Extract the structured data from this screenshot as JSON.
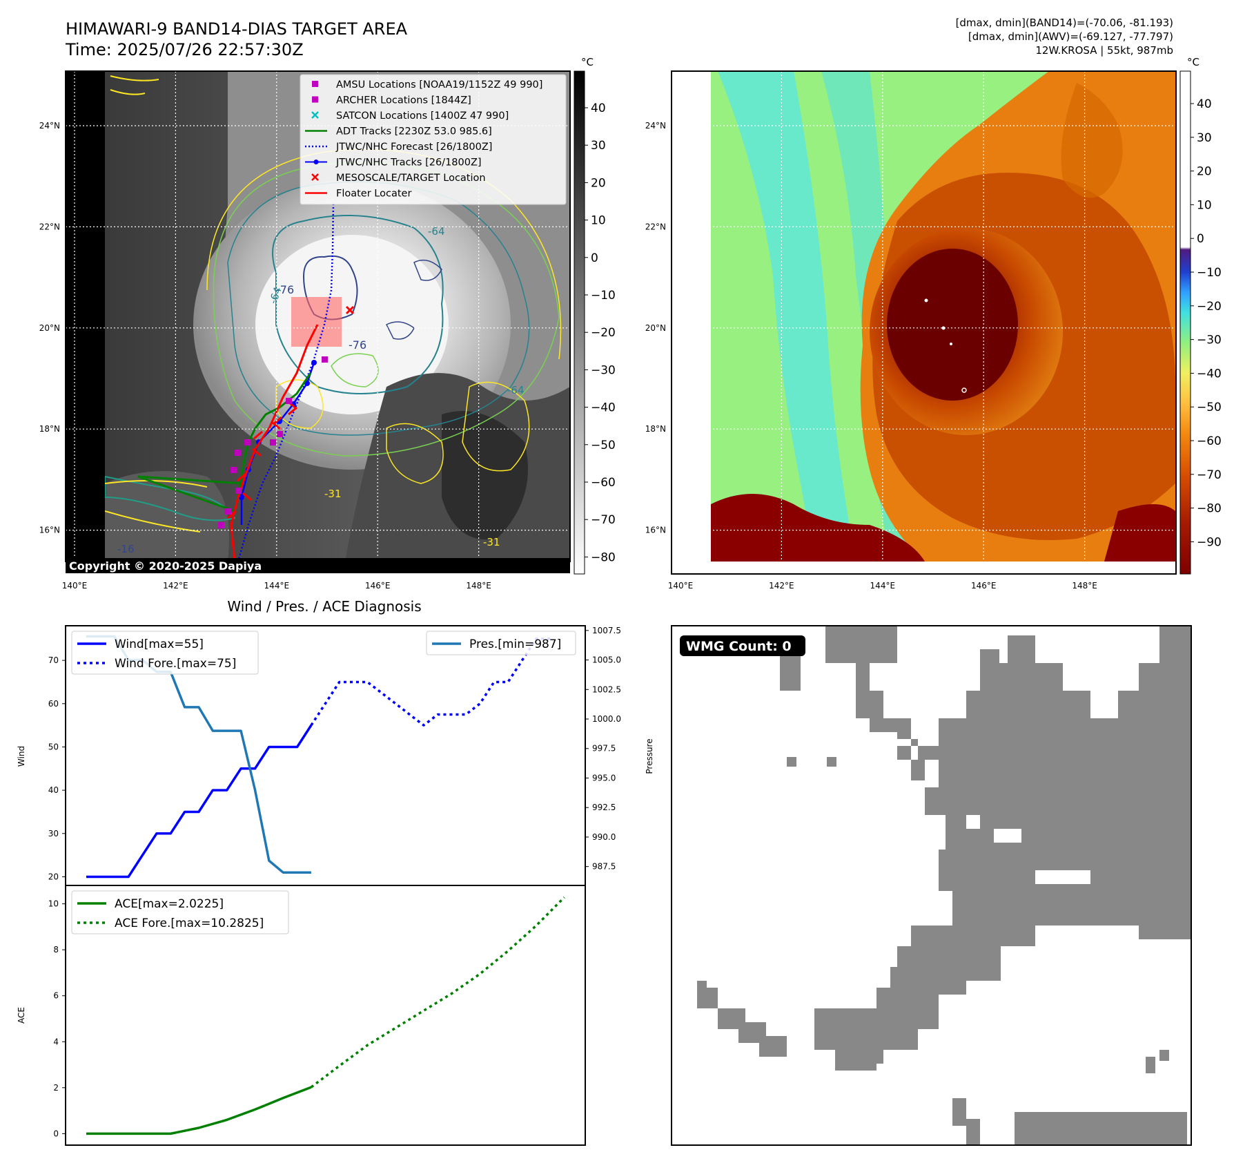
{
  "header": {
    "title": "HIMAWARI-9 BAND14-DIAS TARGET AREA",
    "time": "Time: 2025/07/26 22:57:30Z",
    "info_line1": "[dmax, dmin](BAND14)=(-70.06, -81.193)",
    "info_line2": "[dmax, dmin](AWV)=(-69.127, -77.797)",
    "info_line3": "12W.KROSA | 55kt, 987mb"
  },
  "map_axes": {
    "lon_ticks": [
      "140°E",
      "142°E",
      "144°E",
      "146°E",
      "148°E"
    ],
    "lat_ticks": [
      "24°N",
      "22°N",
      "20°N",
      "18°N",
      "16°N"
    ],
    "lon_values": [
      140,
      142,
      144,
      146,
      148
    ],
    "lat_values": [
      24,
      22,
      20,
      18,
      16
    ]
  },
  "left_map": {
    "copyright": "Copyright © 2020-2025 Dapiya",
    "colorbar_unit": "°C",
    "colorbar_ticks": [
      "40",
      "30",
      "20",
      "10",
      "0",
      "−10",
      "−20",
      "−30",
      "−40",
      "−50",
      "−60",
      "−70",
      "−80"
    ],
    "colorbar_values": [
      40,
      30,
      20,
      10,
      0,
      -10,
      -20,
      -30,
      -40,
      -50,
      -60,
      -70,
      -80
    ],
    "contour_labels": [
      "-76",
      "-76",
      "-64",
      "-64",
      "-31",
      "-31",
      "-16",
      "-64"
    ],
    "legend": [
      {
        "label": "AMSU Locations [NOAA19/1152Z 49 990]",
        "color": "#bf00bf"
      },
      {
        "label": "ARCHER Locations [1844Z]",
        "color": "#bf00bf"
      },
      {
        "label": "SATCON Locations [1400Z 47 990]",
        "color": "#00bfbf"
      },
      {
        "label": "ADT Tracks [2230Z 53.0 985.6]",
        "color": "#008000"
      },
      {
        "label": "JTWC/NHC Forecast [26/1800Z]",
        "color": "#0000ff"
      },
      {
        "label": "JTWC/NHC Tracks [26/1800Z]",
        "color": "#0000ff"
      },
      {
        "label": "MESOSCALE/TARGET Location",
        "color": "#ff0000"
      },
      {
        "label": "Floater Locater",
        "color": "#ff0000"
      }
    ]
  },
  "right_map": {
    "colorbar_unit": "°C",
    "colorbar_ticks": [
      "40",
      "30",
      "20",
      "10",
      "0",
      "−10",
      "−20",
      "−30",
      "−40",
      "−50",
      "−60",
      "−70",
      "−80",
      "−90"
    ],
    "colorbar_values": [
      40,
      30,
      20,
      10,
      0,
      -10,
      -20,
      -30,
      -40,
      -50,
      -60,
      -70,
      -80,
      -90
    ]
  },
  "wmg": {
    "label": "WMG Count: 0"
  },
  "chart_data": [
    {
      "type": "line",
      "title": "Wind / Pres. / ACE Diagnosis",
      "ylabel": "Wind",
      "ylabel_right": "Pressure",
      "x_range": [
        0,
        35
      ],
      "ylim": [
        18,
        78
      ],
      "ylim_right": [
        985.9,
        1007.9
      ],
      "y_ticks": [
        20,
        30,
        40,
        50,
        60,
        70
      ],
      "y_ticks_right": [
        987.5,
        990.0,
        992.5,
        995.0,
        997.5,
        1000.0,
        1002.5,
        1005.0,
        1007.5
      ],
      "y_tick_labels_right": [
        "987.5",
        "990.0",
        "992.5",
        "995.0",
        "997.5",
        "1000.0",
        "1002.5",
        "1005.0",
        "1007.5"
      ],
      "series": [
        {
          "name": "Wind[max=55]",
          "color": "#0000ff",
          "style": "solid",
          "x": [
            0,
            1,
            2,
            3,
            4,
            5,
            6,
            7,
            8,
            9,
            10,
            11,
            12,
            13,
            14,
            15,
            16
          ],
          "y": [
            20,
            20,
            20,
            20,
            25,
            30,
            30,
            35,
            35,
            40,
            40,
            45,
            45,
            50,
            50,
            50,
            55
          ]
        },
        {
          "name": "Wind Fore.[max=75]",
          "color": "#0000ff",
          "style": "dotted",
          "x": [
            16,
            17,
            18,
            19,
            20,
            21,
            22,
            23,
            24,
            25,
            26,
            27,
            28,
            29,
            30,
            31,
            32,
            33
          ],
          "y": [
            55,
            60,
            65,
            65,
            65,
            62.5,
            60,
            57.5,
            55,
            57.5,
            57.5,
            57.5,
            60,
            65,
            65,
            70,
            75,
            75
          ]
        },
        {
          "name": "Pres.[min=987]",
          "color": "#1f77b4",
          "style": "solid",
          "axis": "right",
          "x": [
            0,
            1,
            2,
            3,
            4,
            5,
            6,
            7,
            8,
            9,
            10,
            11,
            12,
            13,
            14,
            15,
            16
          ],
          "y": [
            1007,
            1007,
            1007,
            1005,
            1005,
            1004,
            1004,
            1001,
            1001,
            999,
            999,
            999,
            994,
            988,
            987,
            987,
            987
          ]
        }
      ]
    },
    {
      "type": "line",
      "ylabel": "ACE",
      "x_range": [
        0,
        35
      ],
      "ylim": [
        -0.5,
        10.8
      ],
      "y_ticks": [
        0,
        2,
        4,
        6,
        8,
        10
      ],
      "series": [
        {
          "name": "ACE[max=2.0225]",
          "color": "#008000",
          "style": "solid",
          "x": [
            0,
            2,
            4,
            6,
            8,
            10,
            12,
            14,
            16
          ],
          "y": [
            0,
            0,
            0,
            0,
            0.25,
            0.6,
            1.05,
            1.55,
            2.0225
          ]
        },
        {
          "name": "ACE Fore.[max=10.2825]",
          "color": "#008000",
          "style": "dotted",
          "x": [
            16,
            18,
            20,
            22,
            24,
            26,
            28,
            30,
            32,
            34
          ],
          "y": [
            2.0225,
            2.95,
            3.85,
            4.6,
            5.35,
            6.1,
            6.95,
            7.95,
            9.05,
            10.2825
          ]
        }
      ]
    }
  ]
}
